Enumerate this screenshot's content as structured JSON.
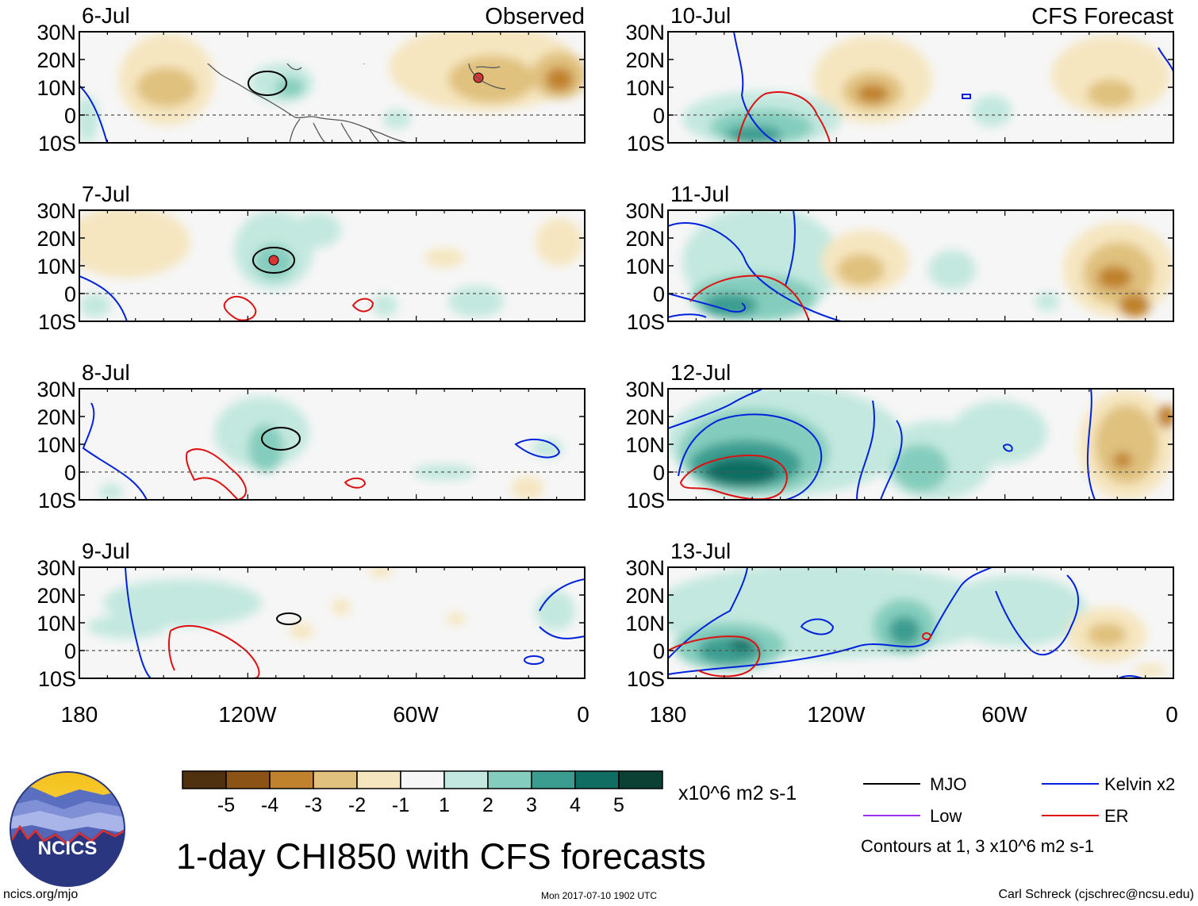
{
  "figure": {
    "title": "1-day CHI850 with CFS forecasts",
    "website": "ncics.org/mjo",
    "timestamp": "Mon 2017-07-10 1902 UTC",
    "author": "Carl Schreck (cjschrec@ncsu.edu)",
    "logo_text": "NCICS"
  },
  "columns": {
    "observed": "Observed",
    "forecast": "CFS Forecast"
  },
  "lat_labels": [
    "30N",
    "20N",
    "10N",
    "0",
    "10S"
  ],
  "lon_labels": [
    "180",
    "120W",
    "60W",
    "0"
  ],
  "panels": [
    {
      "date": "6-Jul",
      "kind": "observed"
    },
    {
      "date": "7-Jul",
      "kind": "observed"
    },
    {
      "date": "8-Jul",
      "kind": "observed"
    },
    {
      "date": "9-Jul",
      "kind": "observed"
    },
    {
      "date": "10-Jul",
      "kind": "forecast"
    },
    {
      "date": "11-Jul",
      "kind": "forecast"
    },
    {
      "date": "12-Jul",
      "kind": "forecast"
    },
    {
      "date": "13-Jul",
      "kind": "forecast"
    }
  ],
  "colorbar": {
    "labels": [
      "-5",
      "-4",
      "-3",
      "-2",
      "-1",
      "1",
      "2",
      "3",
      "4",
      "5"
    ],
    "colors": [
      "#4f3110",
      "#8b5316",
      "#c0822c",
      "#e0c17e",
      "#f6e6c0",
      "#f6f6f6",
      "#c3e8df",
      "#84cdbd",
      "#3a9d90",
      "#0f6d62",
      "#0b4034"
    ],
    "units": "x10^6 m2 s-1"
  },
  "legend": {
    "items": [
      {
        "label": "MJO",
        "color": "#000000"
      },
      {
        "label": "Kelvin x2",
        "color": "#0022dd"
      },
      {
        "label": "Low",
        "color": "#9933ee"
      },
      {
        "label": "ER",
        "color": "#dd1111"
      }
    ],
    "note": "Contours at 1, 3 x10^6 m2 s-1"
  },
  "colors": {
    "land_line": "#555555",
    "equator": "#555555",
    "frame": "#000000"
  }
}
